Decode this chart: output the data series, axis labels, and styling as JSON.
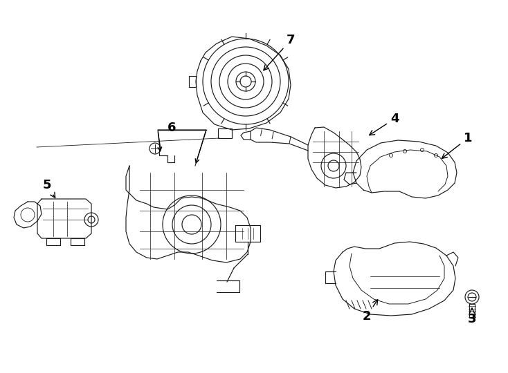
{
  "background_color": "#ffffff",
  "line_color": "#1a1a1a",
  "label_color": "#000000",
  "lw": 0.85,
  "figsize": [
    7.34,
    5.4
  ],
  "dpi": 100
}
